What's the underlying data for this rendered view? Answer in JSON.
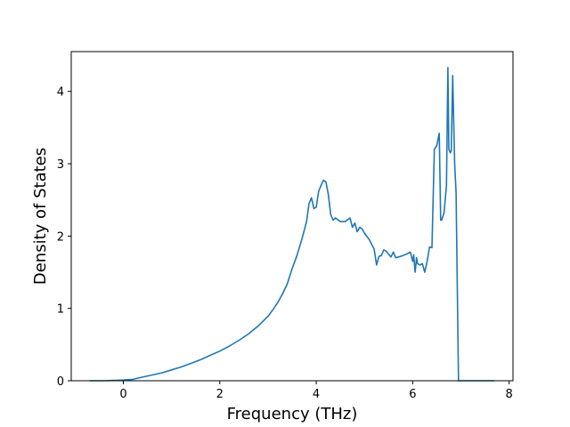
{
  "chart_data": {
    "type": "line",
    "title": "",
    "xlabel": "Frequency (THz)",
    "ylabel": "Density of States",
    "xlim": [
      -1.08,
      8.08
    ],
    "ylim": [
      0,
      4.55
    ],
    "xticks": [
      0,
      2,
      4,
      6,
      8
    ],
    "yticks": [
      0,
      1,
      2,
      3,
      4
    ],
    "grid": false,
    "legend": "none",
    "series": [
      {
        "color": "#1f77b4",
        "x": [
          -0.7,
          -0.4,
          0,
          0.2,
          0.4,
          0.6,
          0.8,
          1.0,
          1.2,
          1.4,
          1.6,
          1.8,
          2.0,
          2.2,
          2.4,
          2.6,
          2.8,
          3.0,
          3.1,
          3.2,
          3.3,
          3.4,
          3.5,
          3.6,
          3.7,
          3.8,
          3.85,
          3.9,
          3.95,
          4.0,
          4.05,
          4.1,
          4.15,
          4.2,
          4.25,
          4.3,
          4.35,
          4.4,
          4.5,
          4.6,
          4.7,
          4.75,
          4.8,
          4.85,
          4.9,
          4.95,
          5.0,
          5.1,
          5.2,
          5.25,
          5.3,
          5.35,
          5.4,
          5.45,
          5.5,
          5.55,
          5.6,
          5.65,
          5.7,
          5.8,
          5.9,
          5.95,
          6.0,
          6.02,
          6.05,
          6.08,
          6.1,
          6.15,
          6.2,
          6.25,
          6.3,
          6.35,
          6.4,
          6.45,
          6.5,
          6.55,
          6.58,
          6.6,
          6.65,
          6.7,
          6.73,
          6.75,
          6.78,
          6.8,
          6.83,
          6.87,
          6.9,
          6.95,
          7.0,
          7.3,
          7.7
        ],
        "values": [
          0,
          0,
          0.01,
          0.02,
          0.05,
          0.08,
          0.11,
          0.15,
          0.19,
          0.24,
          0.29,
          0.35,
          0.41,
          0.48,
          0.56,
          0.65,
          0.76,
          0.89,
          0.98,
          1.08,
          1.2,
          1.34,
          1.55,
          1.73,
          1.95,
          2.2,
          2.45,
          2.53,
          2.38,
          2.4,
          2.62,
          2.7,
          2.77,
          2.75,
          2.58,
          2.3,
          2.22,
          2.25,
          2.2,
          2.2,
          2.25,
          2.12,
          2.18,
          2.06,
          2.12,
          2.1,
          2.04,
          1.95,
          1.82,
          1.6,
          1.72,
          1.73,
          1.81,
          1.79,
          1.75,
          1.71,
          1.78,
          1.7,
          1.71,
          1.73,
          1.76,
          1.78,
          1.65,
          1.74,
          1.5,
          1.7,
          1.62,
          1.6,
          1.62,
          1.5,
          1.65,
          1.85,
          1.84,
          3.2,
          3.25,
          3.42,
          2.22,
          2.22,
          2.32,
          2.7,
          4.33,
          3.2,
          3.15,
          3.18,
          4.22,
          3.0,
          2.6,
          0,
          0,
          0,
          0
        ]
      }
    ]
  }
}
